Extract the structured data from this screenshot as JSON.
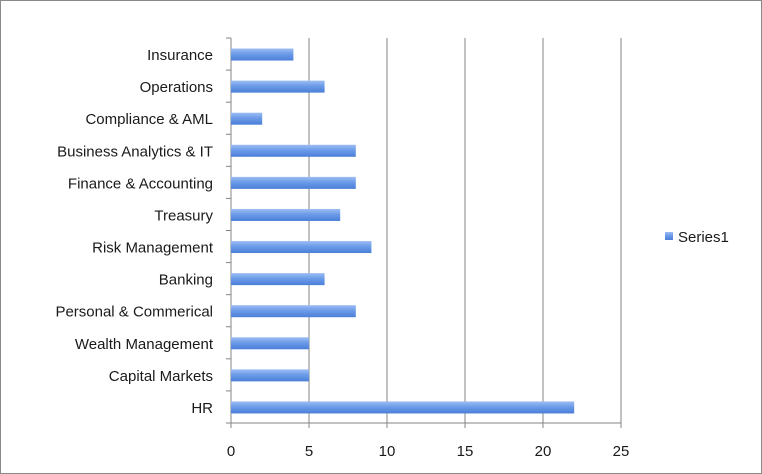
{
  "chart_data": {
    "type": "bar",
    "orientation": "horizontal",
    "categories": [
      "Insurance",
      "Operations",
      "Compliance & AML",
      "Business Analytics & IT",
      "Finance & Accounting",
      "Treasury",
      "Risk Management",
      "Banking",
      "Personal & Commerical",
      "Wealth Management",
      "Capital Markets",
      "HR"
    ],
    "series": [
      {
        "name": "Series1",
        "values": [
          4,
          6,
          2,
          8,
          8,
          7,
          9,
          6,
          8,
          5,
          5,
          22
        ],
        "color": "#6c9be8"
      }
    ],
    "xlim": [
      0,
      25
    ],
    "xticks": [
      0,
      5,
      10,
      15,
      20,
      25
    ],
    "tick_labels": [
      "0",
      "5",
      "10",
      "15",
      "20",
      "25"
    ],
    "grid": "vertical",
    "legend_position": "right",
    "title": "",
    "xlabel": "",
    "ylabel": ""
  }
}
